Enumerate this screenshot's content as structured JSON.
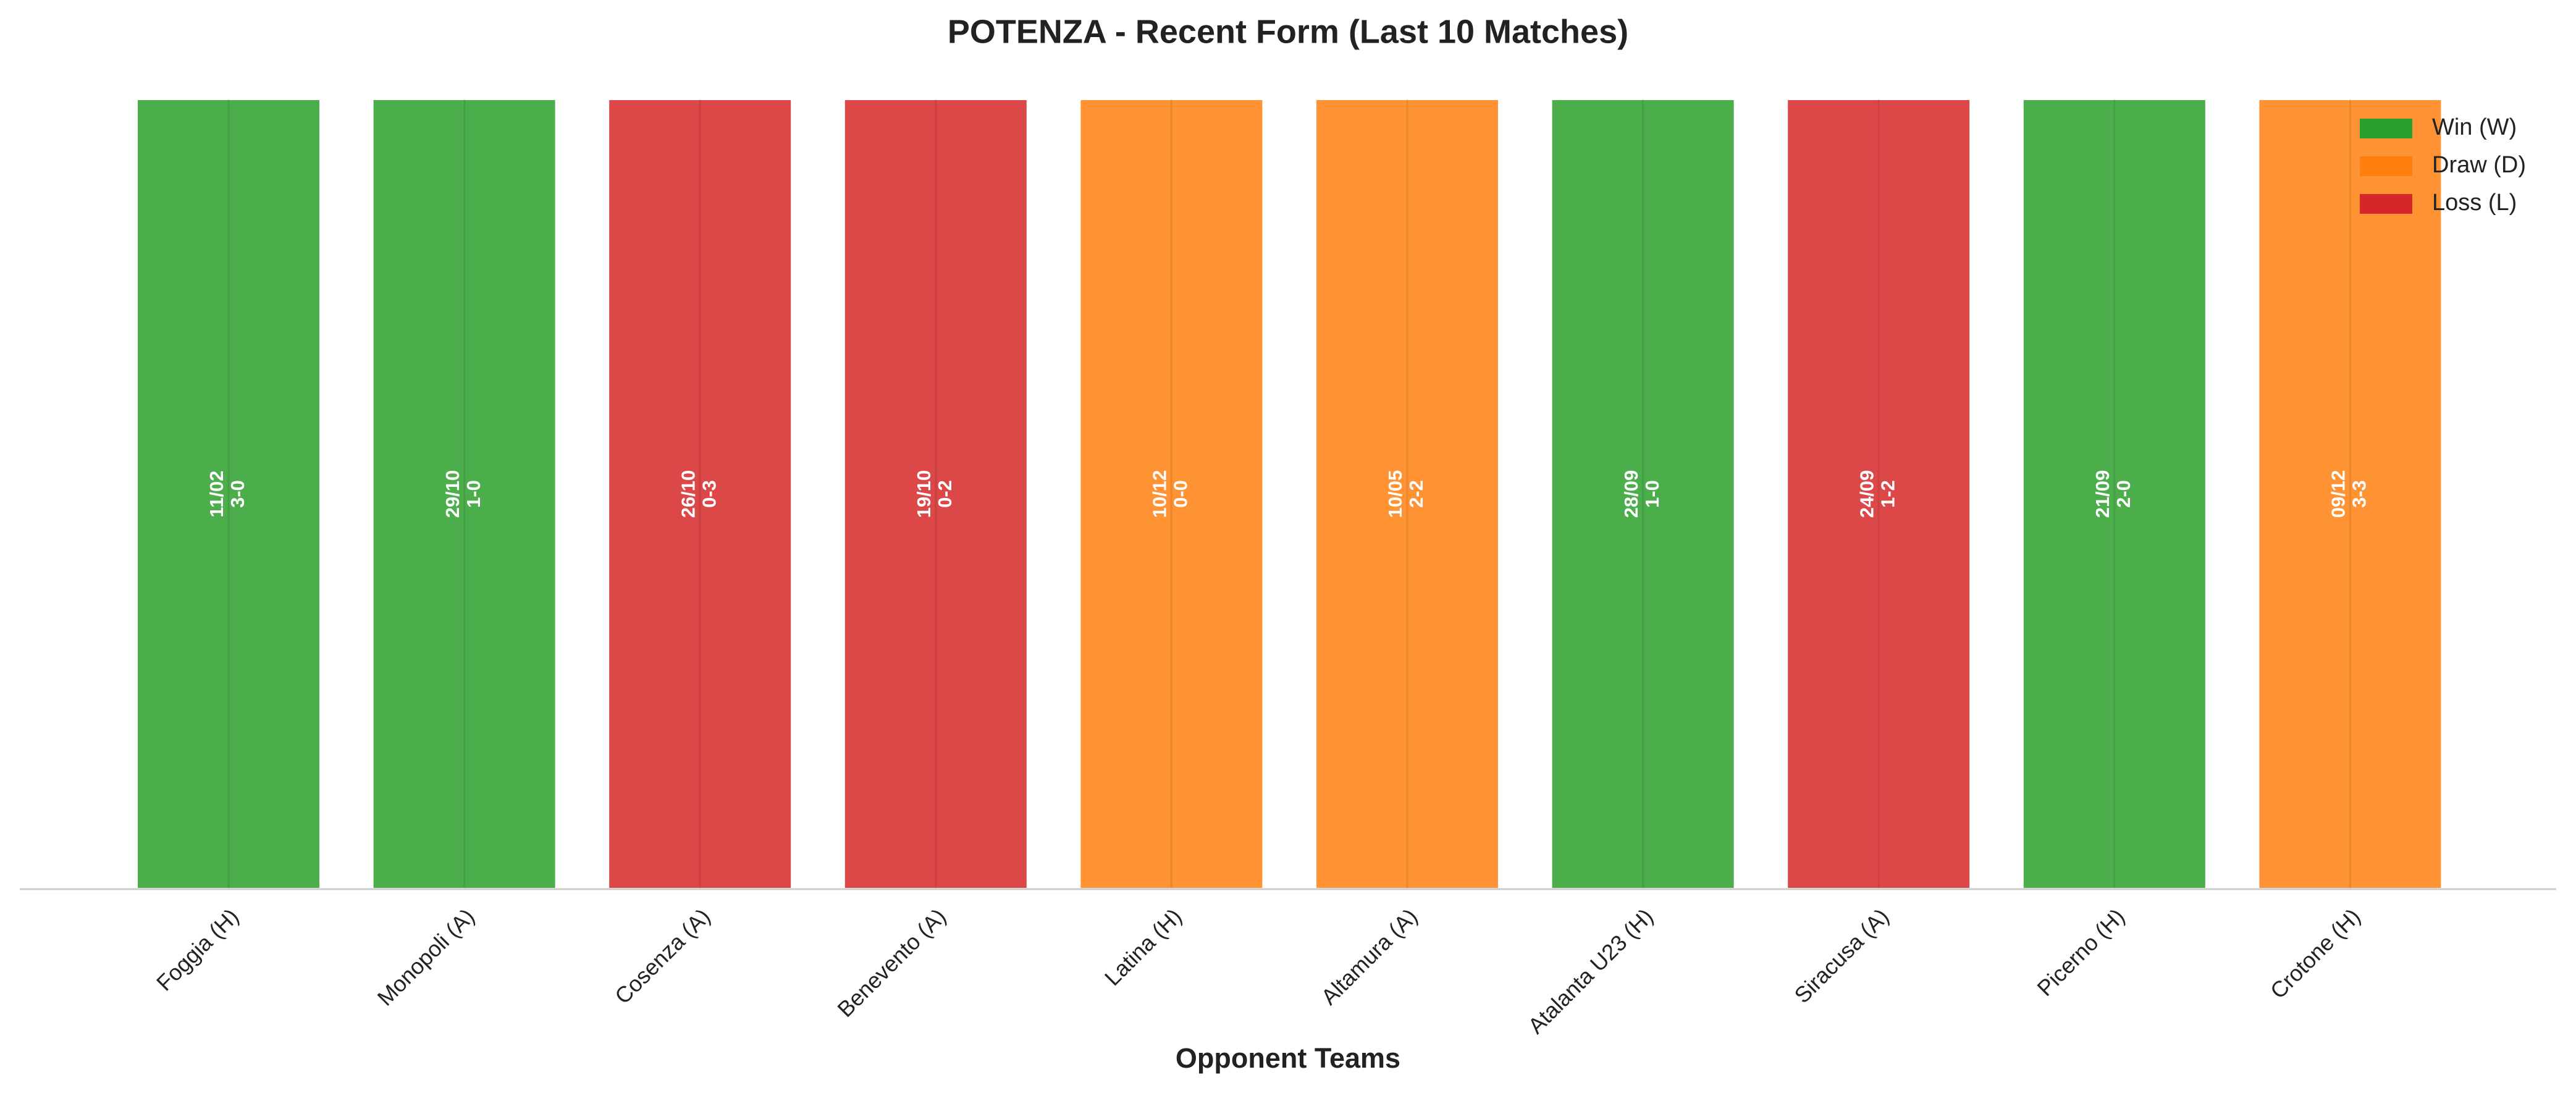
{
  "chart_data": {
    "type": "bar",
    "title": "POTENZA - Recent Form (Last 10 Matches)",
    "x_label": "Opponent Teams",
    "categories": [
      "Foggia (H)",
      "Monopoli (A)",
      "Cosenza (A)",
      "Benevento (A)",
      "Latina (H)",
      "Altamura (A)",
      "Atalanta U23 (H)",
      "Siracusa (A)",
      "Picerno (H)",
      "Crotone (H)"
    ],
    "values": [
      1,
      1,
      1,
      1,
      1,
      1,
      1,
      1,
      1,
      1
    ],
    "dates": [
      "11/02",
      "29/10",
      "26/10",
      "19/10",
      "10/12",
      "10/05",
      "28/09",
      "24/09",
      "21/09",
      "09/12"
    ],
    "scores": [
      "3-0",
      "1-0",
      "0-3",
      "0-2",
      "0-0",
      "2-2",
      "1-0",
      "1-2",
      "2-0",
      "3-3"
    ],
    "colors": [
      "#2ca02c",
      "#2ca02c",
      "#d62728",
      "#d62728",
      "#ff7f0e",
      "#ff7f0e",
      "#2ca02c",
      "#d62728",
      "#2ca02c",
      "#ff7f0e"
    ],
    "ylim": [
      0,
      1
    ],
    "grid": true,
    "legend_position": "upper right",
    "legend": [
      {
        "name": "Win (W)",
        "color": "#2ca02c"
      },
      {
        "name": "Draw (D)",
        "color": "#ff7f0e"
      },
      {
        "name": "Loss (L)",
        "color": "#d62728"
      }
    ]
  }
}
